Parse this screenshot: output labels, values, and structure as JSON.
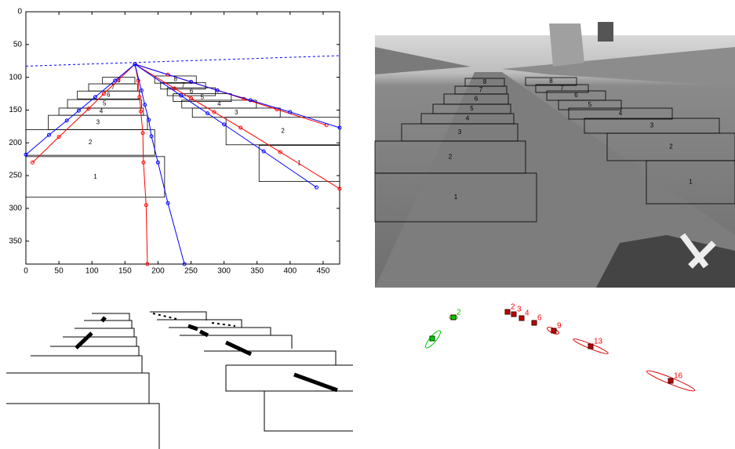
{
  "chart_data": {
    "type": "line",
    "xlim": [
      0,
      475
    ],
    "ylim": [
      385,
      0
    ],
    "xticks": [
      0,
      50,
      100,
      150,
      200,
      250,
      300,
      350,
      400,
      450
    ],
    "yticks": [
      0,
      50,
      100,
      150,
      200,
      250,
      300,
      350
    ],
    "series": [
      {
        "color": "#0000ff",
        "linestyle": "--",
        "x": [
          0,
          475
        ],
        "y": [
          83,
          67
        ]
      },
      {
        "color": "#ff0000",
        "marker": "o",
        "x": [
          165,
          140,
          118,
          95,
          50,
          10
        ],
        "y": [
          80,
          104,
          125,
          148,
          191,
          230
        ]
      },
      {
        "color": "#ff0000",
        "marker": "o",
        "x": [
          165,
          170,
          172,
          174,
          177,
          178,
          182,
          184
        ],
        "y": [
          80,
          105,
          130,
          152,
          185,
          230,
          295,
          385
        ]
      },
      {
        "color": "#ff0000",
        "marker": "o",
        "x": [
          165,
          225,
          250,
          285,
          325,
          385,
          475
        ],
        "y": [
          80,
          117,
          132,
          153,
          177,
          214,
          270
        ]
      },
      {
        "color": "#ff0000",
        "marker": "o",
        "x": [
          165,
          215,
          250,
          290,
          330,
          380,
          455
        ],
        "y": [
          80,
          96,
          107,
          120,
          133,
          149,
          173
        ]
      },
      {
        "color": "#0000ff",
        "marker": "o",
        "x": [
          165,
          135,
          105,
          80,
          62,
          35,
          0
        ],
        "y": [
          80,
          105,
          130,
          151,
          166,
          188,
          218
        ]
      },
      {
        "color": "#0000ff",
        "marker": "o",
        "x": [
          165,
          175,
          180,
          186,
          190,
          200,
          215,
          240
        ],
        "y": [
          80,
          120,
          142,
          165,
          190,
          230,
          292,
          385
        ]
      },
      {
        "color": "#0000ff",
        "marker": "o",
        "x": [
          165,
          235,
          275,
          300,
          360,
          440
        ],
        "y": [
          80,
          128,
          155,
          172,
          213,
          268
        ]
      },
      {
        "color": "#0000ff",
        "marker": "o",
        "x": [
          165,
          250,
          290,
          340,
          400,
          475
        ],
        "y": [
          80,
          107,
          120,
          135,
          153,
          177
        ]
      }
    ],
    "boxes": [
      {
        "label": "1",
        "x": [
          0,
          210
        ],
        "y": [
          221,
          283
        ]
      },
      {
        "label": "2",
        "x": [
          0,
          195
        ],
        "y": [
          180,
          219
        ]
      },
      {
        "label": "3",
        "x": [
          34,
          184
        ],
        "y": [
          158,
          180
        ]
      },
      {
        "label": "4",
        "x": [
          50,
          178
        ],
        "y": [
          147,
          158
        ]
      },
      {
        "label": "5",
        "x": [
          63,
          175
        ],
        "y": [
          134,
          147
        ]
      },
      {
        "label": "6",
        "x": [
          78,
          172
        ],
        "y": [
          121,
          133
        ]
      },
      {
        "label": "7",
        "x": [
          95,
          169
        ],
        "y": [
          110,
          121
        ]
      },
      {
        "label": "8",
        "x": [
          116,
          165
        ],
        "y": [
          100,
          110
        ]
      },
      {
        "label": "8",
        "x": [
          195,
          258
        ],
        "y": [
          98,
          109
        ]
      },
      {
        "label": "7",
        "x": [
          204,
          272
        ],
        "y": [
          108,
          118
        ]
      },
      {
        "label": "6",
        "x": [
          214,
          287
        ],
        "y": [
          116,
          128
        ]
      },
      {
        "label": "5",
        "x": [
          223,
          311
        ],
        "y": [
          125,
          137
        ]
      },
      {
        "label": "4",
        "x": [
          236,
          349
        ],
        "y": [
          135,
          147
        ]
      },
      {
        "label": "3",
        "x": [
          252,
          385
        ],
        "y": [
          147,
          161
        ]
      },
      {
        "label": "2",
        "x": [
          303,
          475
        ],
        "y": [
          161,
          203
        ]
      },
      {
        "label": "1",
        "x": [
          353,
          475
        ],
        "y": [
          204,
          259
        ]
      }
    ]
  },
  "photo": {
    "box_labels": [
      "1",
      "2",
      "3",
      "4",
      "5",
      "6",
      "7",
      "8",
      "8",
      "7",
      "6",
      "5",
      "4",
      "3",
      "2",
      "1"
    ]
  },
  "tracks": {
    "labels": [
      "2",
      "2",
      "3",
      "4",
      "6",
      "9",
      "13",
      "16"
    ]
  }
}
